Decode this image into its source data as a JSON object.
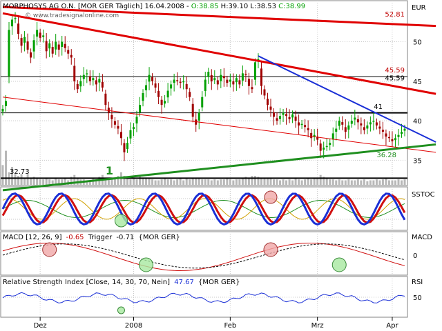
{
  "header": {
    "title": "MORPHOSYS AG O.N. [MOR GER  Täglich] 16.04.2008",
    "open": "O:38.85",
    "high": "H:39.10",
    "low": "L:38.53",
    "close": "C:38.99",
    "watermark": "© www.tradesignalonline.com"
  },
  "colors": {
    "up": "#00a000",
    "down": "#a00000",
    "trend_red": "#e00000",
    "trend_blue": "#1a2fd6",
    "trend_green": "#1f8f1f",
    "panel_bg": "#ffffff",
    "grid": "#c8c8c8"
  },
  "chart_data": [
    {
      "type": "candlestick",
      "panel": "price",
      "currency_label": "EUR",
      "yticks": [
        35,
        40,
        45,
        50
      ],
      "ylim": [
        31.8,
        55.2
      ],
      "xticks": [
        "Dez",
        "2008",
        "Feb",
        "Mrz",
        "Apr"
      ],
      "xtick_index": [
        12,
        42,
        73,
        101,
        125
      ],
      "level_labels": {
        "a": "52.81",
        "b": "45.59",
        "c": "45.59",
        "d": "41",
        "e": "36.28",
        "f": "32.73",
        "wave": "1"
      },
      "horizontal_levels": [
        32.73,
        41,
        45.59
      ],
      "lines": [
        {
          "from": [
            0,
            54.4
          ],
          "to": [
            139,
            52.0
          ],
          "color": "trend_red",
          "width": 3
        },
        {
          "from": [
            0,
            53.6
          ],
          "to": [
            139,
            43.4
          ],
          "color": "trend_red",
          "width": 3
        },
        {
          "from": [
            0,
            43.0
          ],
          "to": [
            139,
            36.0
          ],
          "color": "trend_red",
          "width": 1
        },
        {
          "from": [
            82,
            48.2
          ],
          "to": [
            139,
            37.3
          ],
          "color": "trend_blue",
          "width": 2
        },
        {
          "from": [
            0,
            31.2
          ],
          "to": [
            139,
            37.0
          ],
          "color": "trend_green",
          "width": 3
        }
      ],
      "closes": [
        41.5,
        42.5,
        51.5,
        52.8,
        53.0,
        51.0,
        49.5,
        50.6,
        49.0,
        48.0,
        50.2,
        51.5,
        50.5,
        50.8,
        48.8,
        49.8,
        48.5,
        50.0,
        49.0,
        50.0,
        49.2,
        48.5,
        48.0,
        45.0,
        44.0,
        45.0,
        45.8,
        46.0,
        45.0,
        45.4,
        44.6,
        45.3,
        44.2,
        42.0,
        41.0,
        40.2,
        39.5,
        39.0,
        37.8,
        36.0,
        37.2,
        38.8,
        39.2,
        40.5,
        42.0,
        43.5,
        44.5,
        45.8,
        45.0,
        44.2,
        43.0,
        42.0,
        42.5,
        43.8,
        44.6,
        45.2,
        45.0,
        44.8,
        45.0,
        44.0,
        43.0,
        40.5,
        39.5,
        41.0,
        43.0,
        45.2,
        46.2,
        45.0,
        45.4,
        44.6,
        45.8,
        45.4,
        44.8,
        45.2,
        44.6,
        45.4,
        44.6,
        46.0,
        45.8,
        44.4,
        44.0,
        47.4,
        47.8,
        44.4,
        43.2,
        42.0,
        41.4,
        40.5,
        40.0,
        40.6,
        41.0,
        40.6,
        40.2,
        40.8,
        40.0,
        39.4,
        39.6,
        39.2,
        38.8,
        37.8,
        38.2,
        37.6,
        36.2,
        36.6,
        36.8,
        37.2,
        38.4,
        39.0,
        40.0,
        39.5,
        38.6,
        39.4,
        40.0,
        40.4,
        39.8,
        39.4,
        38.8,
        39.4,
        39.8,
        40.0,
        39.4,
        39.0,
        38.6,
        38.0,
        37.8,
        37.4,
        37.8,
        38.2,
        38.6,
        38.99
      ],
      "volumes": [
        22,
        38,
        14,
        20,
        12,
        10,
        12,
        8,
        12,
        8,
        9,
        7,
        6,
        6,
        8,
        6,
        5,
        8,
        6,
        6,
        8,
        5,
        9,
        11,
        7,
        6,
        6,
        4,
        5,
        7,
        6,
        9,
        11,
        6,
        8,
        8,
        8,
        10,
        14,
        10,
        8,
        6,
        8,
        6,
        10,
        7,
        8,
        7,
        6,
        5,
        5,
        6,
        7,
        6,
        6,
        5,
        6,
        7,
        5,
        8,
        6,
        7,
        8,
        7,
        6,
        6,
        6,
        5,
        6,
        5,
        6,
        6,
        7,
        6,
        5,
        6,
        6,
        7,
        9,
        8,
        10,
        10,
        9,
        8,
        7,
        7,
        8,
        6,
        6,
        5,
        6,
        5,
        6,
        5,
        7,
        6,
        5,
        6,
        8,
        6,
        7,
        8,
        11,
        9,
        7,
        6,
        6,
        5,
        6,
        5,
        5,
        6,
        5,
        5,
        6,
        5,
        6,
        4,
        5,
        5,
        6,
        5,
        6,
        7,
        5,
        5,
        5,
        6,
        5,
        6
      ]
    },
    {
      "type": "line",
      "panel": "stochastic",
      "label": "SSTOC",
      "circles": [
        {
          "index": 38,
          "color": "green"
        },
        {
          "index": 86,
          "color": "red"
        }
      ]
    },
    {
      "type": "line",
      "panel": "macd",
      "legend": "MACD [12, 26, 9]",
      "value": "-0.65",
      "trigger_label": "Trigger",
      "trigger_value": "-0.71",
      "source": "{MOR GER}",
      "label": "MACD",
      "yticks": [
        0
      ],
      "circles": [
        {
          "index": 15,
          "color": "red"
        },
        {
          "index": 46,
          "color": "green"
        },
        {
          "index": 86,
          "color": "red"
        },
        {
          "index": 108,
          "color": "green"
        }
      ]
    },
    {
      "type": "line",
      "panel": "rsi",
      "legend": "Relative Strength Index [Close, 14, 30, 70, Nein]",
      "value": "47.67",
      "source": "{MOR GER}",
      "label": "RSI",
      "yticks": [
        50
      ],
      "circles": [
        {
          "index": 38,
          "color": "green"
        }
      ]
    }
  ]
}
